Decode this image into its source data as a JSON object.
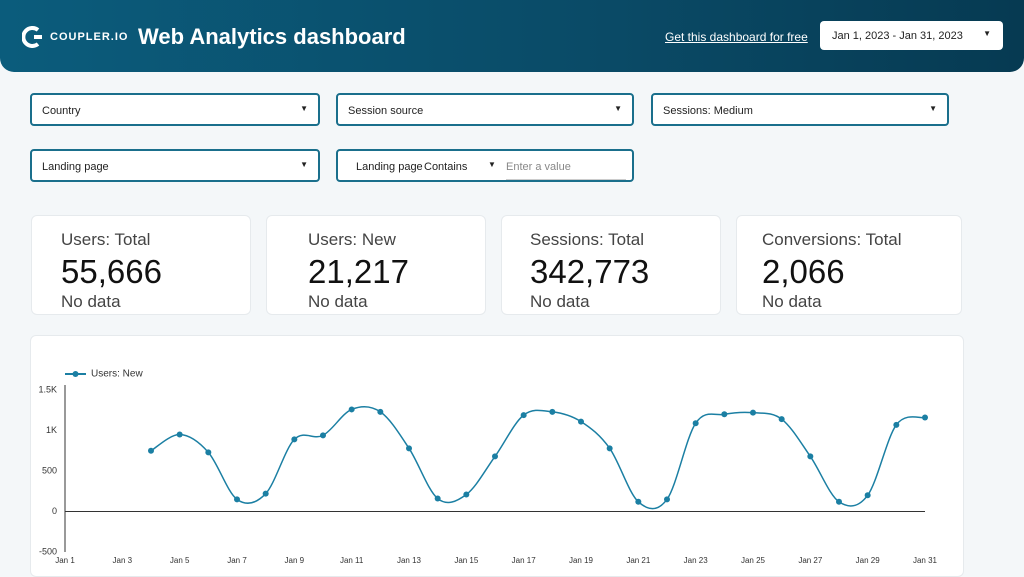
{
  "header": {
    "logo": "COUPLER.IO",
    "title": "Web Analytics dashboard",
    "link": "Get this dashboard for free",
    "date_range": "Jan 1, 2023 - Jan 31, 2023"
  },
  "filters": {
    "row1": [
      "Country",
      "Session source",
      "Sessions: Medium"
    ],
    "row2": "Landing page",
    "text_filter": {
      "field": "Landing page",
      "operator": "Contains",
      "placeholder": "Enter a value"
    }
  },
  "scorecards": [
    {
      "label": "Users: Total",
      "value": "55,666",
      "note": "No data"
    },
    {
      "label": "Users: New",
      "value": "21,217",
      "note": "No data"
    },
    {
      "label": "Sessions: Total",
      "value": "342,773",
      "note": "No data"
    },
    {
      "label": "Conversions: Total",
      "value": "2,066",
      "note": "No data"
    }
  ],
  "chart_data": {
    "type": "line",
    "categories": [
      "Jan 1",
      null,
      "Jan 3",
      null,
      "Jan 5",
      null,
      "Jan 7",
      null,
      "Jan 9",
      null,
      "Jan 11",
      null,
      "Jan 13",
      null,
      "Jan 15",
      null,
      "Jan 17",
      null,
      "Jan 19",
      null,
      "Jan 21",
      null,
      "Jan 23",
      null,
      "Jan 25",
      null,
      "Jan 27",
      null,
      "Jan 29",
      null,
      "Jan 31"
    ],
    "series": [
      {
        "name": "Users: New",
        "color": "#1b7fa3",
        "values": [
          null,
          null,
          null,
          750,
          950,
          730,
          150,
          220,
          890,
          940,
          1260,
          1230,
          780,
          160,
          210,
          680,
          1190,
          1230,
          1110,
          780,
          120,
          150,
          1090,
          1200,
          1220,
          1140,
          680,
          120,
          200,
          1070,
          1160
        ]
      }
    ],
    "ylim": [
      -500,
      1500
    ],
    "yticks": [
      -500,
      0,
      500,
      {
        "value": 1000,
        "label": "1K"
      },
      {
        "value": 1500,
        "label": "1.5K"
      }
    ],
    "grid": false,
    "legend": "top-left"
  }
}
